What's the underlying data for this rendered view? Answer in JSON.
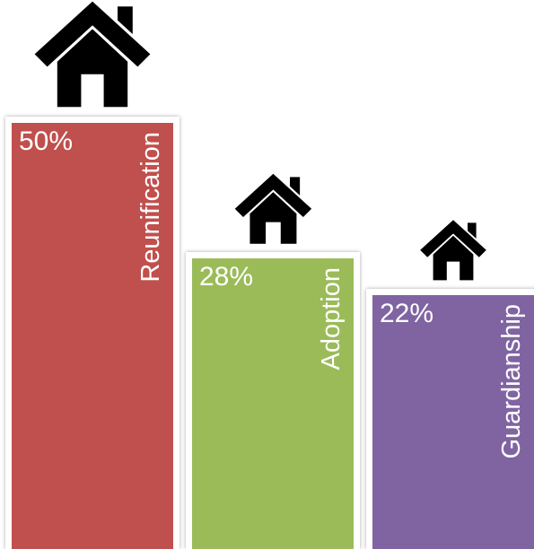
{
  "chart_data": {
    "type": "bar",
    "categories": [
      "Reunification",
      "Adoption",
      "Guardianship"
    ],
    "values": [
      50,
      28,
      22
    ],
    "value_labels": [
      "50%",
      "28%",
      "22%"
    ],
    "colors": [
      "#C0504D",
      "#9BBB59",
      "#8064A2"
    ],
    "icon": "house-icon",
    "title": "",
    "xlabel": "",
    "ylabel": ""
  }
}
